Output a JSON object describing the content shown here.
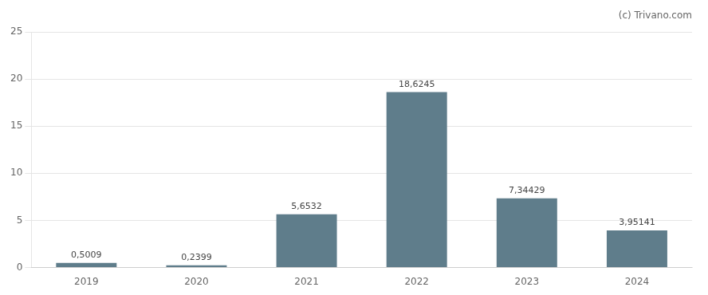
{
  "chart_data": {
    "type": "bar",
    "categories": [
      "2019",
      "2020",
      "2021",
      "2022",
      "2023",
      "2024"
    ],
    "values": [
      0.5009,
      0.2399,
      5.6532,
      18.6245,
      7.34429,
      3.95141
    ],
    "value_labels": [
      "0,5009",
      "0,2399",
      "5,6532",
      "18,6245",
      "7,34429",
      "3,95141"
    ],
    "data_labels": true,
    "color": "#5f7d8b",
    "ylim": [
      0,
      25
    ],
    "yticks": [
      0,
      5,
      10,
      15,
      20,
      25
    ],
    "grid": true,
    "annotations": [
      "(c)",
      "Trivano.com"
    ]
  }
}
